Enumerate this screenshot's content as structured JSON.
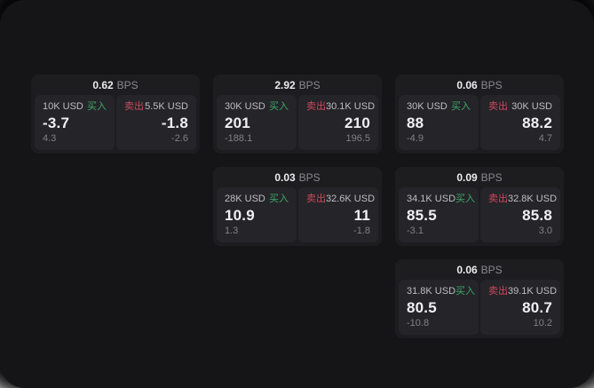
{
  "colors": {
    "window_bg": "#151517",
    "card_bg": "#1d1d20",
    "panel_bg": "#242429",
    "buy_green": "#3fa868",
    "sell_red": "#cb4a5c"
  },
  "cards": [
    {
      "bps_value": "0.62",
      "bps_unit": "BPS",
      "buy": {
        "amount": "10K USD",
        "side_label": "买入",
        "price": "-3.7",
        "change": "4.3"
      },
      "sell": {
        "side_label": "卖出",
        "amount": "5.5K USD",
        "price": "-1.8",
        "change": "-2.6"
      }
    },
    {
      "bps_value": "2.92",
      "bps_unit": "BPS",
      "buy": {
        "amount": "30K USD",
        "side_label": "买入",
        "price": "201",
        "change": "-188.1"
      },
      "sell": {
        "side_label": "卖出",
        "amount": "30.1K USD",
        "price": "210",
        "change": "196.5"
      }
    },
    {
      "bps_value": "0.06",
      "bps_unit": "BPS",
      "buy": {
        "amount": "30K USD",
        "side_label": "买入",
        "price": "88",
        "change": "-4.9"
      },
      "sell": {
        "side_label": "卖出",
        "amount": "30K USD",
        "price": "88.2",
        "change": "4.7"
      }
    },
    {
      "bps_value": "0.03",
      "bps_unit": "BPS",
      "buy": {
        "amount": "28K USD",
        "side_label": "买入",
        "price": "10.9",
        "change": "1.3"
      },
      "sell": {
        "side_label": "卖出",
        "amount": "32.6K USD",
        "price": "11",
        "change": "-1.8"
      }
    },
    {
      "bps_value": "0.09",
      "bps_unit": "BPS",
      "buy": {
        "amount": "34.1K USD",
        "side_label": "买入",
        "price": "85.5",
        "change": "-3.1"
      },
      "sell": {
        "side_label": "卖出",
        "amount": "32.8K USD",
        "price": "85.8",
        "change": "3.0"
      }
    },
    {
      "bps_value": "0.06",
      "bps_unit": "BPS",
      "buy": {
        "amount": "31.8K USD",
        "side_label": "买入",
        "price": "80.5",
        "change": "-10.8"
      },
      "sell": {
        "side_label": "卖出",
        "amount": "39.1K USD",
        "price": "80.7",
        "change": "10.2"
      }
    }
  ]
}
